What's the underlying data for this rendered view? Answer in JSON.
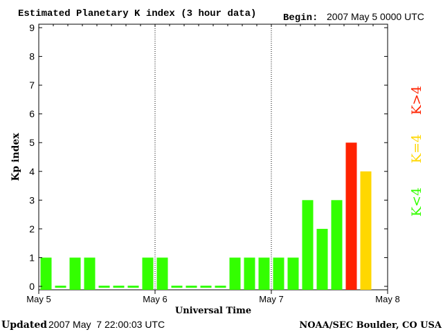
{
  "header": {
    "title": "Estimated Planetary K index (3 hour data)",
    "begin_label": "Begin:",
    "begin_value": "2007 May 5 0000 UTC"
  },
  "footer": {
    "updated_label": "Updated",
    "updated_value": "2007 May  7 22:00:03 UTC",
    "source": "NOAA/SEC Boulder, CO USA"
  },
  "legend": {
    "items": [
      {
        "label": "K<4",
        "color": "#33ff00"
      },
      {
        "label": "K=4",
        "color": "#ffd700"
      },
      {
        "label": "K>4",
        "color": "#ff2200"
      }
    ]
  },
  "colors": {
    "green": "#33ff00",
    "yellow": "#ffd700",
    "red": "#ff2200",
    "axis": "#000000",
    "background": "#ffffff"
  },
  "chart_data": {
    "type": "bar",
    "title": "Estimated Planetary K index (3 hour data)",
    "xlabel": "Universal Time",
    "ylabel": "Kp index",
    "ylim": [
      0,
      9
    ],
    "yticks": [
      "0",
      "1",
      "2",
      "3",
      "4",
      "5",
      "6",
      "7",
      "8",
      "9"
    ],
    "xticks": [
      "May 5",
      "May 6",
      "May 7",
      "May 8"
    ],
    "day_dividers": [
      "May 6",
      "May 7"
    ],
    "bins_per_day": 8,
    "total_bins": 24,
    "values": [
      1,
      0,
      1,
      1,
      0,
      0,
      0,
      1,
      1,
      0,
      0,
      0,
      0,
      1,
      1,
      1,
      1,
      1,
      3,
      2,
      3,
      5,
      4
    ],
    "grid": false,
    "legend_position": "right"
  }
}
